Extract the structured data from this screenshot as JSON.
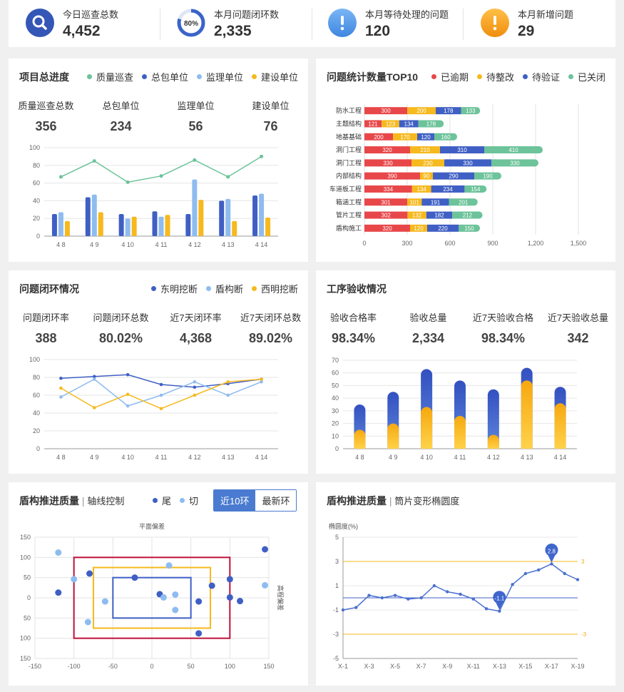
{
  "stats": [
    {
      "label": "今日巡查总数",
      "value": "4,452",
      "icon": "search-icon",
      "color": "#3456b6"
    },
    {
      "label": "本月问题闭环数",
      "value": "2,335",
      "icon": "progress-ring-icon",
      "ring_label": "80%",
      "progress": 0.8,
      "color": "#3a64c8"
    },
    {
      "label": "本月等待处理的问题",
      "value": "120",
      "icon": "exclamation-icon",
      "color": "#4a90e2"
    },
    {
      "label": "本月新增问题",
      "value": "29",
      "icon": "exclamation-icon",
      "color": "#f39c12"
    }
  ],
  "colors": {
    "blue": "#3f5fc4",
    "lightblue": "#8ebcf0",
    "yellow": "#f6b91e",
    "green": "#6dc39a",
    "red": "#e8474a",
    "crimson": "#c0103a"
  },
  "panel1": {
    "title": "项目总进度",
    "legend": [
      "质量巡查",
      "总包单位",
      "监理单位",
      "建设单位"
    ],
    "kpis": [
      {
        "label": "质量巡查总数",
        "value": "356"
      },
      {
        "label": "总包单位",
        "value": "234"
      },
      {
        "label": "监理单位",
        "value": "56"
      },
      {
        "label": "建设单位",
        "value": "76"
      }
    ]
  },
  "panel2": {
    "title": "问题统计数量TOP10",
    "legend": [
      "已逾期",
      "待整改",
      "待验证",
      "已关闭"
    ]
  },
  "panel3": {
    "title": "问题闭环情况",
    "legend": [
      "东明挖断",
      "盾构断",
      "西明挖断"
    ],
    "kpis": [
      {
        "label": "问题闭环率",
        "value": "388"
      },
      {
        "label": "问题闭环总数",
        "value": "80.02%"
      },
      {
        "label": "近7天闭环率",
        "value": "4,368"
      },
      {
        "label": "近7天闭环总数",
        "value": "89.02%"
      }
    ]
  },
  "panel4": {
    "title": "工序验收情况",
    "kpis": [
      {
        "label": "验收合格率",
        "value": "98.34%"
      },
      {
        "label": "验收总量",
        "value": "2,334"
      },
      {
        "label": "近7天验收合格",
        "value": "98.34%"
      },
      {
        "label": "近7天验收总量",
        "value": "342"
      }
    ]
  },
  "panel5": {
    "title": "盾构推进质量",
    "subtitle": "轴线控制",
    "legend": [
      "尾",
      "切"
    ],
    "toggle": [
      "近10环",
      "最新环"
    ]
  },
  "panel6": {
    "title": "盾构推进质量",
    "subtitle": "筒片变形椭圆度"
  },
  "chart_data": [
    {
      "id": "project-progress",
      "type": "bar",
      "categories": [
        "4 8",
        "4 9",
        "4 10",
        "4 11",
        "4 12",
        "4 13",
        "4 14"
      ],
      "ylim": [
        0,
        100
      ],
      "yticks": [
        0,
        20,
        40,
        60,
        80,
        100
      ],
      "series": [
        {
          "name": "质量巡查",
          "kind": "line",
          "values": [
            67,
            85,
            61,
            68,
            86,
            67,
            90
          ]
        },
        {
          "name": "总包单位",
          "values": [
            25,
            44,
            25,
            28,
            25,
            40,
            46
          ]
        },
        {
          "name": "监理单位",
          "values": [
            27,
            47,
            20,
            22,
            64,
            42,
            48
          ]
        },
        {
          "name": "建设单位",
          "values": [
            17,
            27,
            22,
            24,
            41,
            17,
            21
          ]
        }
      ],
      "grid": true
    },
    {
      "id": "top10-issues",
      "type": "bar",
      "orientation": "horizontal-stacked",
      "categories": [
        "防水工程",
        "主题结构",
        "地基基础",
        "洞门工程",
        "洞门工程",
        "内部结构",
        "车道板工程",
        "箱涵工程",
        "管片工程",
        "盾构施工"
      ],
      "xlim": [
        0,
        1500
      ],
      "xticks": [
        "0",
        "300",
        "600",
        "900",
        "1,200",
        "1,500"
      ],
      "series": [
        {
          "name": "已逾期",
          "values": [
            300,
            121,
            200,
            320,
            330,
            390,
            334,
            301,
            302,
            320
          ]
        },
        {
          "name": "待整改",
          "values": [
            200,
            123,
            170,
            210,
            230,
            90,
            134,
            101,
            132,
            120
          ]
        },
        {
          "name": "待验证",
          "values": [
            178,
            134,
            120,
            310,
            330,
            290,
            234,
            191,
            182,
            220
          ]
        },
        {
          "name": "已关闭",
          "values": [
            133,
            178,
            160,
            410,
            330,
            190,
            154,
            201,
            212,
            150
          ]
        }
      ],
      "grid": true
    },
    {
      "id": "closed-loop",
      "type": "line",
      "categories": [
        "4 8",
        "4 9",
        "4 10",
        "4 11",
        "4 12",
        "4 13",
        "4 14"
      ],
      "ylim": [
        0,
        100
      ],
      "yticks": [
        0,
        20,
        40,
        60,
        80,
        100
      ],
      "series": [
        {
          "name": "东明挖断",
          "values": [
            79,
            81,
            83,
            72,
            69,
            73,
            78
          ]
        },
        {
          "name": "盾构断",
          "values": [
            58,
            78,
            48,
            60,
            75,
            60,
            75
          ]
        },
        {
          "name": "西明挖断",
          "values": [
            68,
            46,
            61,
            45,
            60,
            75,
            78
          ]
        }
      ],
      "grid": true
    },
    {
      "id": "process-acceptance",
      "type": "bar",
      "stacked": "overlay",
      "categories": [
        "4 8",
        "4 9",
        "4 10",
        "4 11",
        "4 12",
        "4 13",
        "4 14"
      ],
      "ylim": [
        0,
        70
      ],
      "yticks": [
        0,
        10,
        20,
        30,
        40,
        50,
        60,
        70
      ],
      "series": [
        {
          "name": "total",
          "values": [
            35,
            45,
            63,
            54,
            47,
            64,
            49
          ]
        },
        {
          "name": "passed",
          "values": [
            15,
            20,
            33,
            26,
            11,
            54,
            36
          ]
        }
      ],
      "grid": true
    },
    {
      "id": "axis-control",
      "type": "scatter",
      "title": "平面偏差",
      "y2label": "高程偏差",
      "xlim": [
        -150,
        150
      ],
      "ylim": [
        -150,
        150
      ],
      "xticks": [
        -150,
        -100,
        -50,
        0,
        50,
        100,
        150
      ],
      "yticks": [
        -150,
        -100,
        -50,
        0,
        50,
        100,
        150
      ],
      "limits": [
        {
          "bound": 100,
          "color": "#c0103a"
        },
        {
          "bound": 75,
          "color": "#f6b91e"
        },
        {
          "bound": 50,
          "color": "#3f5fc4"
        }
      ],
      "series": [
        {
          "name": "尾",
          "points": [
            [
              -120,
              13
            ],
            [
              -80,
              60
            ],
            [
              -22,
              50
            ],
            [
              10,
              9
            ],
            [
              60,
              -9
            ],
            [
              77,
              30
            ],
            [
              100,
              46
            ],
            [
              100,
              1
            ],
            [
              113,
              -8
            ],
            [
              145,
              120
            ],
            [
              60,
              -88
            ]
          ]
        },
        {
          "name": "切",
          "points": [
            [
              -120,
              112
            ],
            [
              -100,
              46
            ],
            [
              -82,
              -60
            ],
            [
              -60,
              -9
            ],
            [
              22,
              80
            ],
            [
              15,
              1
            ],
            [
              30,
              8
            ],
            [
              30,
              -30
            ],
            [
              145,
              31
            ]
          ]
        }
      ],
      "grid": true
    },
    {
      "id": "ovality",
      "type": "line",
      "ylabel": "椭圆度(%)",
      "x": [
        "X-1",
        "X-2",
        "X-3",
        "X-4",
        "X-5",
        "X-6",
        "X-7",
        "X-8",
        "X-9",
        "X-10",
        "X-11",
        "X-12",
        "X-13",
        "X-14",
        "X-15",
        "X-16",
        "X-17",
        "X-18",
        "X-19"
      ],
      "xticks": [
        "X-1",
        "X-3",
        "X-5",
        "X-7",
        "X-9",
        "X-11",
        "X-13",
        "X-15",
        "X-17",
        "X-19"
      ],
      "ylim": [
        -5,
        5
      ],
      "yticks": [
        -5,
        -3,
        -1,
        1,
        3,
        5
      ],
      "values": [
        -1.0,
        -0.8,
        0.2,
        0.0,
        0.2,
        -0.1,
        0.0,
        1.0,
        0.5,
        0.3,
        -0.1,
        -0.9,
        -1.1,
        1.1,
        2.0,
        2.3,
        2.8,
        2.0,
        1.5
      ],
      "markers": [
        {
          "index": 12,
          "label": "-1.1"
        },
        {
          "index": 16,
          "label": "2.8"
        }
      ],
      "limit_lines": [
        {
          "value": 3,
          "label": "3"
        },
        {
          "value": -3,
          "label": "-3"
        }
      ],
      "baseline": 0,
      "grid": true
    }
  ]
}
